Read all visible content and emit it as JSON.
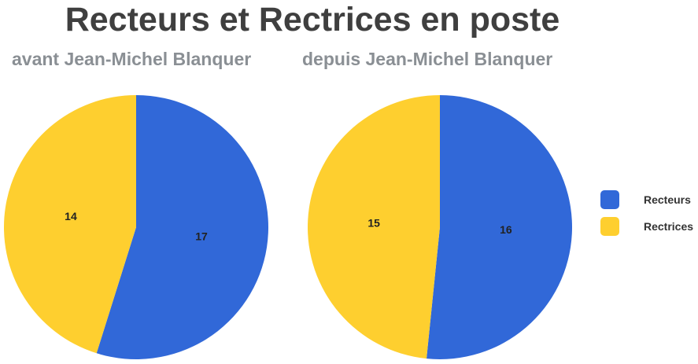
{
  "header": {
    "title": "Recteurs et Rectrices en poste"
  },
  "colors": {
    "recteurs": "#3168d8",
    "rectrices": "#fecf2f"
  },
  "chart_data": [
    {
      "type": "pie",
      "title": "avant Jean-Michel Blanquer",
      "slices": [
        {
          "label": "Recteurs",
          "value": 17,
          "color": "#3168d8"
        },
        {
          "label": "Rectrices",
          "value": 14,
          "color": "#fecf2f"
        }
      ]
    },
    {
      "type": "pie",
      "title": "depuis Jean-Michel Blanquer",
      "slices": [
        {
          "label": "Recteurs",
          "value": 16,
          "color": "#3168d8"
        },
        {
          "label": "Rectrices",
          "value": 15,
          "color": "#fecf2f"
        }
      ]
    }
  ],
  "legend": {
    "placement": "right",
    "items": [
      {
        "label": "Recteurs",
        "color": "#3168d8"
      },
      {
        "label": "Rectrices",
        "color": "#fecf2f"
      }
    ]
  }
}
